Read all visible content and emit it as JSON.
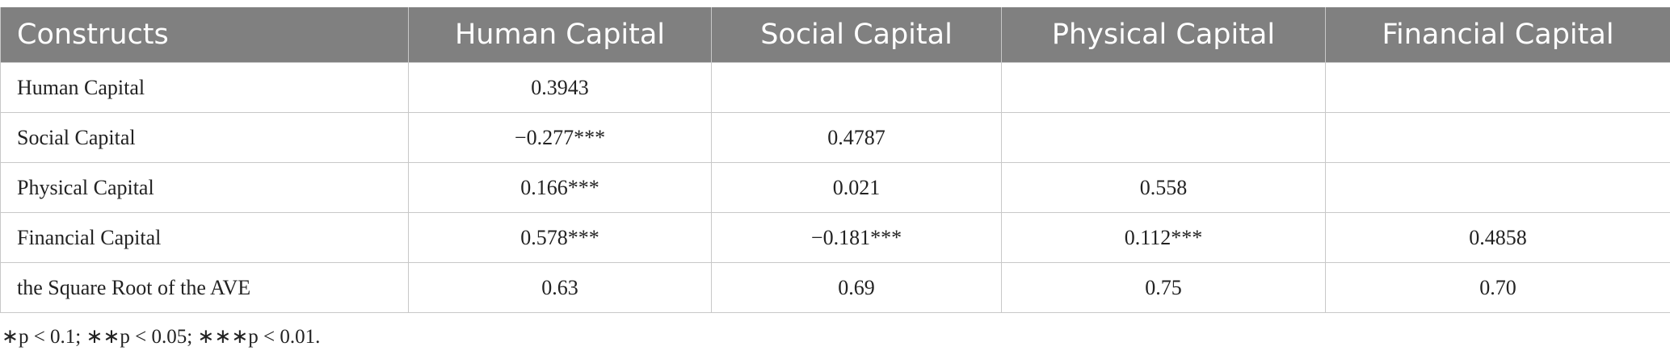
{
  "table": {
    "header": [
      "Constructs",
      "Human Capital",
      "Social Capital",
      "Physical Capital",
      "Financial Capital"
    ],
    "rows": [
      [
        "Human Capital",
        "0.3943",
        null,
        null,
        null
      ],
      [
        "Social Capital",
        "−0.277***",
        "0.4787",
        null,
        null
      ],
      [
        "Physical Capital",
        "0.166***",
        "0.021",
        "0.558",
        null
      ],
      [
        "Financial Capital",
        "0.578***",
        "−0.181***",
        "0.112***",
        "0.4858"
      ],
      [
        "the Square Root of the AVE",
        "0.63",
        "0.69",
        "0.75",
        "0.70"
      ]
    ]
  },
  "footnote": "∗p < 0.1; ∗∗p < 0.05; ∗∗∗p < 0.01."
}
